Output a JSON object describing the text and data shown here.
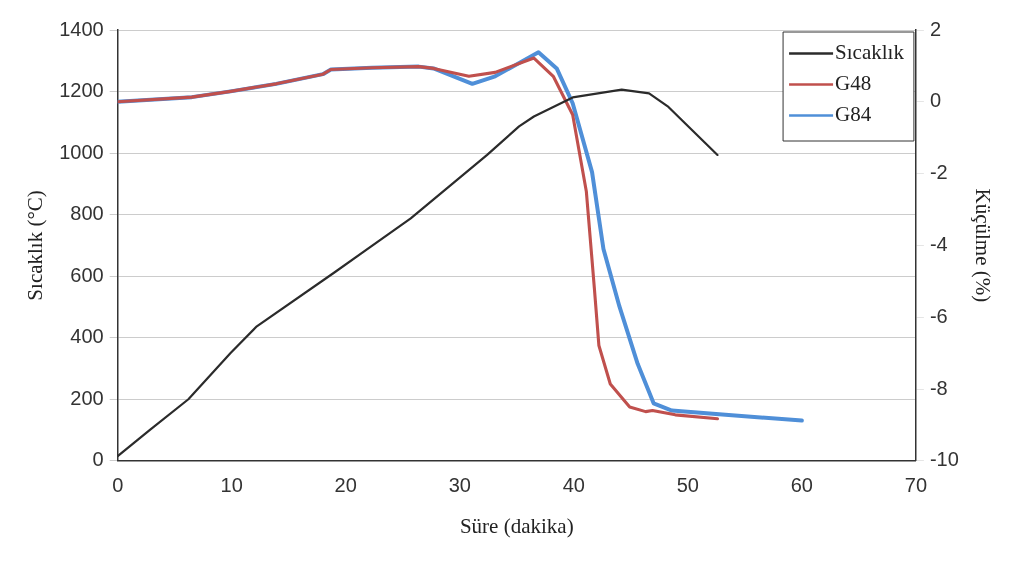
{
  "chart_data": {
    "type": "line",
    "xlabel": "Süre (dakika)",
    "ylabel": "Sıcaklık (°C)",
    "y2label": "Küçülme (%)",
    "xlim": [
      0,
      70
    ],
    "xticks": [
      0,
      10,
      20,
      30,
      40,
      50,
      60,
      70
    ],
    "ylim": [
      0,
      1400
    ],
    "yticks": [
      0,
      200,
      400,
      600,
      800,
      1000,
      1200,
      1400
    ],
    "y2lim": [
      -10,
      2
    ],
    "y2ticks": [
      -10,
      -8,
      -6,
      -4,
      -2,
      0,
      2
    ],
    "grid": "y",
    "legend": "top right",
    "marker": "none",
    "line_style": "solid",
    "series": [
      {
        "name": "Sıcaklık",
        "color": "#2b2b2b",
        "x": [
          0,
          2.8,
          6.2,
          9.9,
          12.2,
          19,
          25.7,
          32.4,
          35.2,
          36.5,
          39.9,
          44.2,
          46.6,
          48.3,
          52.6
        ],
        "values": [
          15,
          100,
          200,
          350,
          437,
          612,
          788,
          994,
          1087,
          1119,
          1181,
          1206,
          1194,
          1150,
          994
        ]
      },
      {
        "name": "G48",
        "color": "#c0504d",
        "axis": "y2",
        "x": [
          0,
          6.5,
          9.9,
          13.9,
          18,
          18.7,
          22.3,
          26.4,
          27.7,
          30.8,
          33.1,
          36.5,
          38.2,
          39.9,
          41.1,
          41.8,
          42.2,
          43.2,
          44.9,
          46.3,
          46.9,
          48.9,
          52.6
        ],
        "values": [
          0,
          0.13,
          0.29,
          0.5,
          0.77,
          0.9,
          0.95,
          0.98,
          0.93,
          0.71,
          0.82,
          1.22,
          0.71,
          -0.36,
          -2.5,
          -5.18,
          -6.79,
          -7.86,
          -8.5,
          -8.63,
          -8.6,
          -8.72,
          -8.83
        ]
      },
      {
        "name": "G84",
        "color": "#4f8fd8",
        "axis": "y2",
        "x": [
          0,
          6.5,
          9.9,
          13.9,
          18,
          18.7,
          22.3,
          26.4,
          27.7,
          31.1,
          33.1,
          36.9,
          38.5,
          39.9,
          41.6,
          42.6,
          44,
          45.6,
          47,
          48.6,
          53.3,
          60
        ],
        "values": [
          0,
          0.13,
          0.29,
          0.5,
          0.77,
          0.9,
          0.95,
          0.98,
          0.93,
          0.5,
          0.71,
          1.38,
          0.93,
          -0.04,
          -1.96,
          -4.1,
          -5.7,
          -7.3,
          -8.4,
          -8.6,
          -8.72,
          -8.88
        ]
      }
    ]
  }
}
